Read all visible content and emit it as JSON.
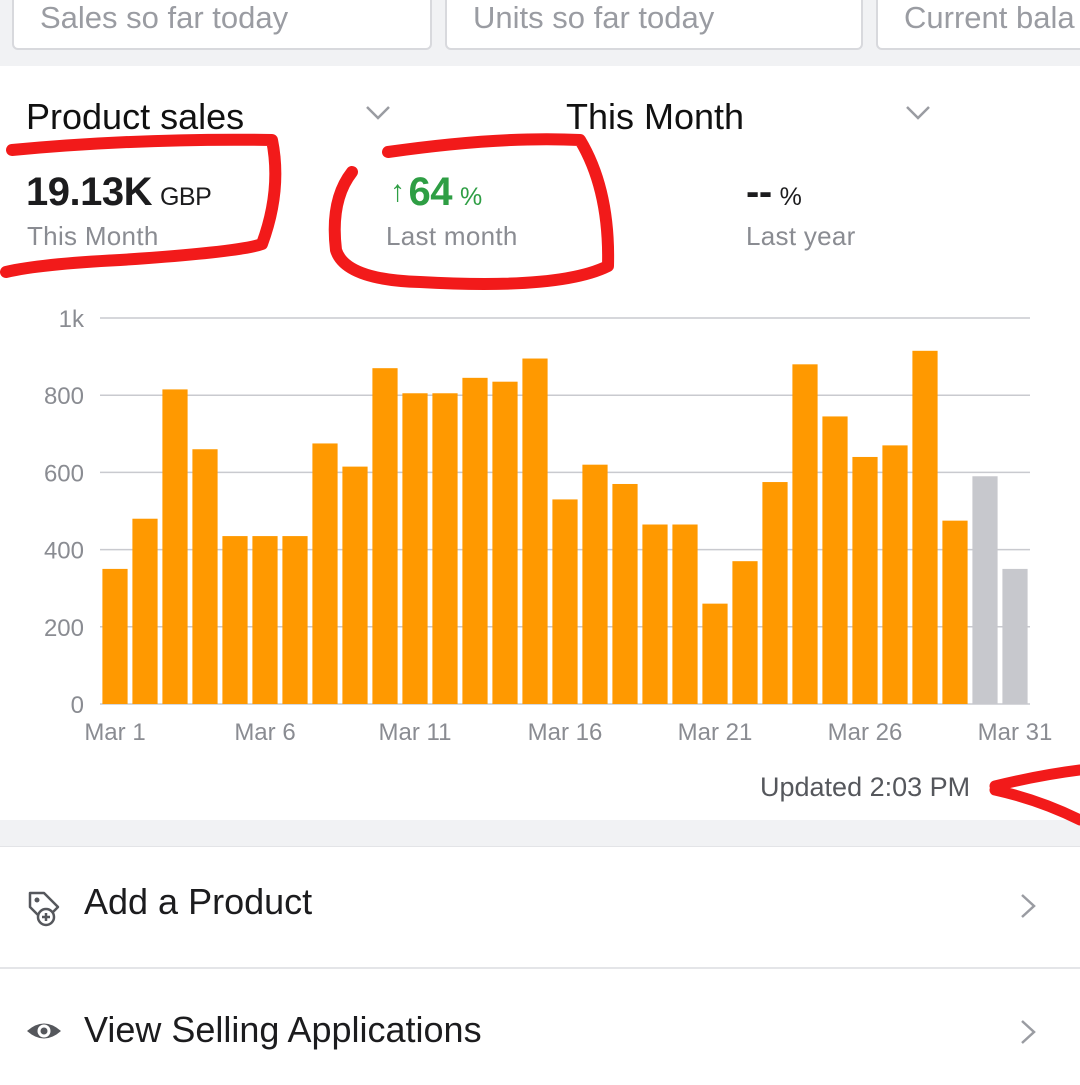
{
  "stat_cards": [
    "Sales so far today",
    "Units so far today",
    "Current bala"
  ],
  "selectors": {
    "metric": "Product sales",
    "period": "This Month"
  },
  "metrics": [
    {
      "value": "19.13K",
      "unit": "GBP",
      "label": "This Month"
    },
    {
      "arrow": "↑",
      "value": "64",
      "unit": "%",
      "label": "Last month",
      "color": "#2e9e44"
    },
    {
      "value": "--",
      "unit": "%",
      "label": "Last year"
    }
  ],
  "chart_data": {
    "type": "bar",
    "x": [
      "Mar 1",
      "Mar 2",
      "Mar 3",
      "Mar 4",
      "Mar 5",
      "Mar 6",
      "Mar 7",
      "Mar 8",
      "Mar 9",
      "Mar 10",
      "Mar 11",
      "Mar 12",
      "Mar 13",
      "Mar 14",
      "Mar 15",
      "Mar 16",
      "Mar 17",
      "Mar 18",
      "Mar 19",
      "Mar 20",
      "Mar 21",
      "Mar 22",
      "Mar 23",
      "Mar 24",
      "Mar 25",
      "Mar 26",
      "Mar 27",
      "Mar 28",
      "Mar 29",
      "Mar 30",
      "Mar 31"
    ],
    "values": [
      350,
      480,
      815,
      660,
      435,
      435,
      435,
      675,
      615,
      870,
      805,
      805,
      845,
      835,
      895,
      530,
      620,
      570,
      465,
      465,
      260,
      370,
      575,
      880,
      745,
      640,
      670,
      915,
      475,
      590,
      350
    ],
    "projected_from_index": 29,
    "tick_labels": [
      "Mar 1",
      "Mar 6",
      "Mar 11",
      "Mar 16",
      "Mar 21",
      "Mar 26",
      "Mar 31"
    ],
    "y_ticks": [
      "0",
      "200",
      "400",
      "600",
      "800",
      "1k"
    ],
    "ylim": [
      0,
      1000
    ],
    "grid": true,
    "colors": {
      "actual": "#ff9900",
      "projected": "#c7c8cd"
    }
  },
  "updated_text": "Updated 2:03 PM",
  "menu": [
    {
      "label": "Add a Product",
      "icon": "tag-add-icon"
    },
    {
      "label": "View Selling Applications",
      "icon": "eye-icon"
    }
  ]
}
